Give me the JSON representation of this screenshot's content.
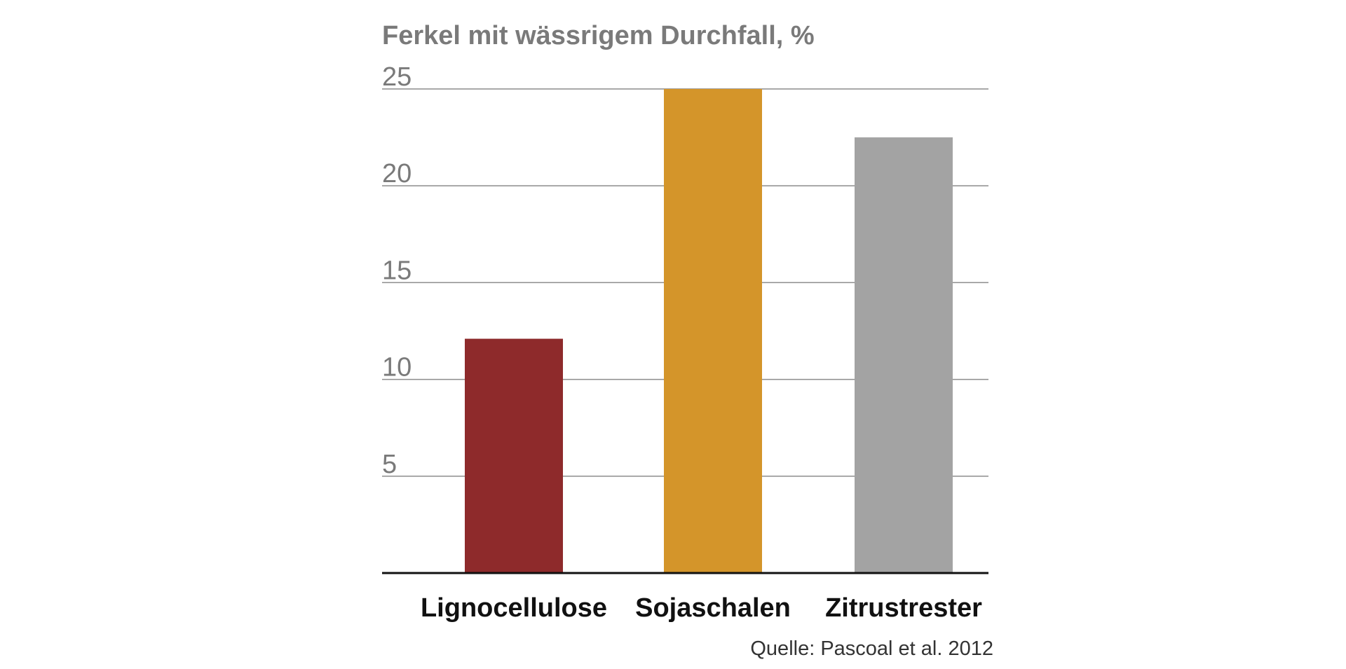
{
  "chart_data": {
    "type": "bar",
    "title": "Ferkel mit wässrigem Durchfall, %",
    "categories": [
      "Lignocellulose",
      "Sojaschalen",
      "Zitrustrester"
    ],
    "values": [
      12.1,
      25.0,
      22.5
    ],
    "ylim": [
      0,
      25
    ],
    "yticks": [
      5,
      10,
      15,
      20,
      25
    ],
    "xlabel": "",
    "ylabel": "",
    "grid": true,
    "legend": "none",
    "source": "Quelle: Pascoal et al. 2012",
    "colors": {
      "bars": [
        "#8e2a2b",
        "#d4952a",
        "#a3a3a3"
      ],
      "title": "#7a7a7a",
      "ticks": "#7a7a7a",
      "grid": "#8c8c8c",
      "axis": "#111111",
      "category_labels": "#111111",
      "source": "#333333"
    }
  }
}
